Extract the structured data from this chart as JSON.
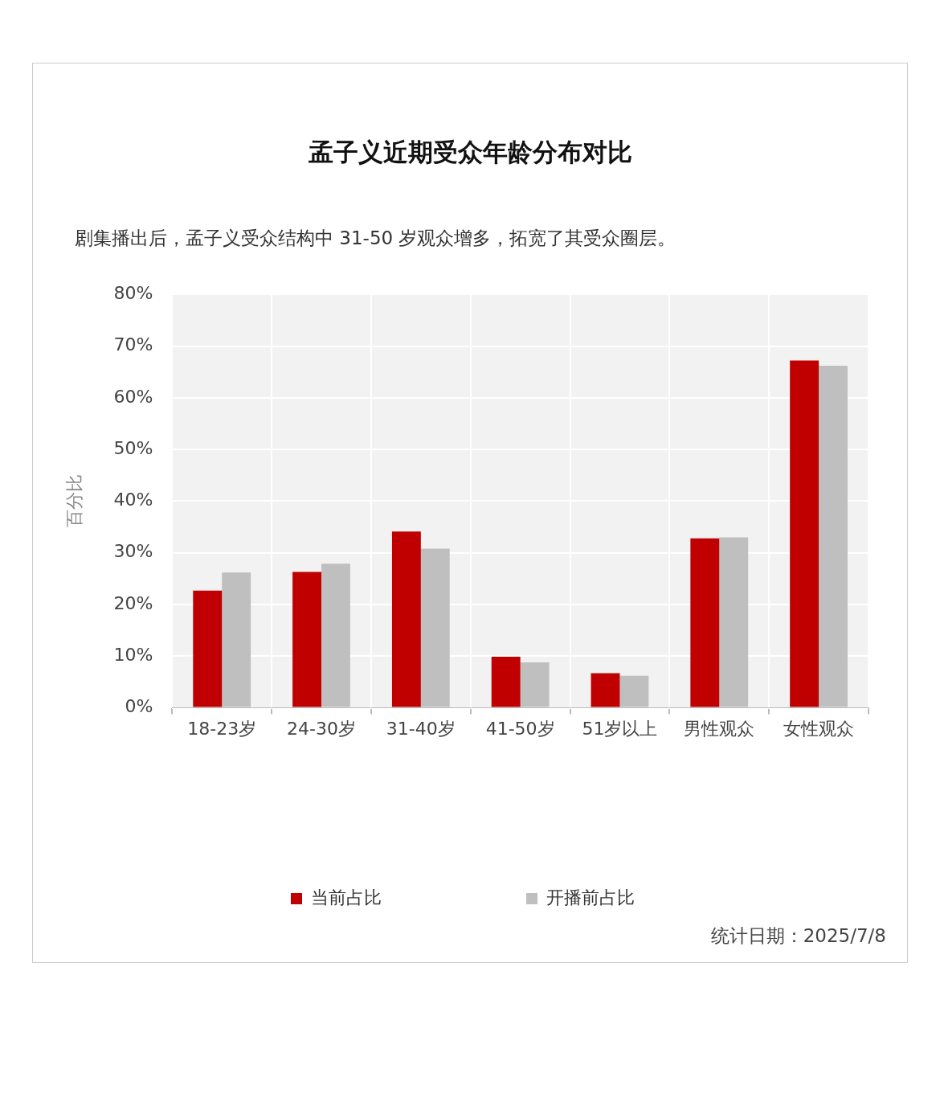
{
  "chart_data": {
    "type": "bar",
    "title": "孟子义近期受众年龄分布对比",
    "subtitle": "剧集播出后，孟子义受众结构中 31-50 岁观众增多，拓宽了其受众圈层。",
    "ylabel": "百分比",
    "categories": [
      "18-23岁",
      "24-30岁",
      "31-40岁",
      "41-50岁",
      "51岁以上",
      "男性观众",
      "女性观众"
    ],
    "series": [
      {
        "name": "当前占比",
        "color": "#c00000",
        "values": [
          22.7,
          26.3,
          34.1,
          9.9,
          6.7,
          32.8,
          67.2
        ]
      },
      {
        "name": "开播前占比",
        "color": "#bfbfbf",
        "values": [
          26.2,
          27.9,
          30.8,
          8.8,
          6.2,
          33.0,
          66.2
        ]
      }
    ],
    "ylim": [
      0,
      80
    ],
    "yticks": [
      {
        "value": 0,
        "label": "0%"
      },
      {
        "value": 10,
        "label": "10%"
      },
      {
        "value": 20,
        "label": "20%"
      },
      {
        "value": 30,
        "label": "30%"
      },
      {
        "value": 40,
        "label": "40%"
      },
      {
        "value": 50,
        "label": "50%"
      },
      {
        "value": 60,
        "label": "60%"
      },
      {
        "value": 70,
        "label": "70%"
      },
      {
        "value": 80,
        "label": "80%"
      }
    ],
    "grid": true,
    "legend": "bottom",
    "annotations": [
      "统计日期：2025/7/8"
    ]
  }
}
